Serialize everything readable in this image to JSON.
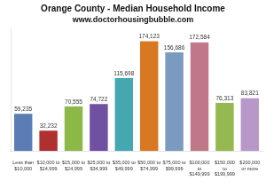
{
  "chart_data": {
    "type": "bar",
    "title": "Orange County - Median Household Income",
    "subtitle": "www.doctorhousingbubble.com",
    "categories": [
      "Less than\n$10,000",
      "$10,000 to\n$14,999",
      "$15,000 to\n$24,999",
      "$25,000 to\n$34,999",
      "$35,000 to\n$49,999",
      "$50,000 to\n$74,999",
      "$75,000 to\n$99,999",
      "$100,000\nto\n$149,999",
      "$150,000\nto\n$199,999",
      "$200,000\nor more"
    ],
    "values": [
      59235,
      32232,
      70555,
      74722,
      115698,
      174123,
      156686,
      172584,
      76313,
      83821
    ],
    "value_labels": [
      "59,235",
      "32,232",
      "70,555",
      "74,722",
      "115,698",
      "174,123",
      "156,686",
      "172,584",
      "76,313",
      "83,821"
    ],
    "colors": [
      "#5b7db5",
      "#b03030",
      "#8cb848",
      "#7050a0",
      "#45a8b0",
      "#d87820",
      "#7a9abf",
      "#c07888",
      "#96b850",
      "#b898c8"
    ],
    "ylim": [
      0,
      195000
    ],
    "grid": false,
    "data_labels": true,
    "tick_labels": "x"
  }
}
